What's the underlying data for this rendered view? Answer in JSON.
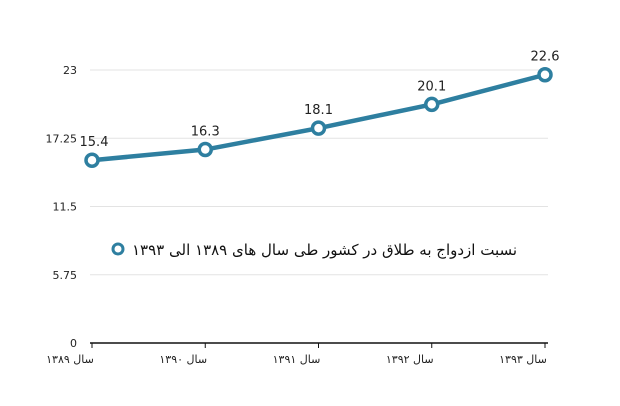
{
  "chart_data": {
    "type": "line",
    "categories": [
      "سال ۱۳۸۹",
      "سال ۱۳۹۰",
      "سال ۱۳۹۱",
      "سال ۱۳۹۲",
      "سال ۱۳۹۳"
    ],
    "series": [
      {
        "name": "نسبت ازدواج به طلاق در کشور طی سال های ۱۳۸۹ الی ۱۳۹۳",
        "values": [
          15.4,
          16.3,
          18.1,
          20.1,
          22.6
        ],
        "color": "#2e7fa0"
      }
    ],
    "y_ticks": [
      "0",
      "5.75",
      "11.5",
      "17.25",
      "23"
    ],
    "ylim": [
      0,
      23
    ],
    "grid": true,
    "legend_position": "middle-right"
  }
}
